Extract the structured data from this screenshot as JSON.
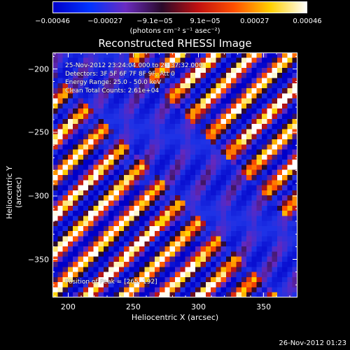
{
  "chart_data": {
    "type": "heatmap",
    "title": "Reconstructed RHESSI Image",
    "xlabel": "Heliocentric X (arcsec)",
    "ylabel": "Heliocentric Y (arcsec)",
    "xlim": [
      188,
      376
    ],
    "ylim": [
      -380,
      -187
    ],
    "xticks": [
      {
        "value": 200,
        "label": "200"
      },
      {
        "value": 250,
        "label": "250"
      },
      {
        "value": 300,
        "label": "300"
      },
      {
        "value": 350,
        "label": "350"
      }
    ],
    "yticks": [
      {
        "value": -200,
        "label": "−200"
      },
      {
        "value": -250,
        "label": "−250"
      },
      {
        "value": -300,
        "label": "−300"
      },
      {
        "value": -350,
        "label": "−350"
      }
    ],
    "colorbar": {
      "range": [
        -0.00046,
        0.00046
      ],
      "ticks": [
        {
          "value": -0.00046,
          "label": "−0.00046"
        },
        {
          "value": -0.00027,
          "label": "−0.00027"
        },
        {
          "value": -9.1e-05,
          "label": "−9.1e−05"
        },
        {
          "value": 9.1e-05,
          "label": "9.1e−05"
        },
        {
          "value": 0.00027,
          "label": "0.00027"
        },
        {
          "value": 0.00046,
          "label": "0.00046"
        }
      ],
      "unit_label": "(photons cm⁻² s⁻¹ asec⁻²)",
      "colors": [
        "#0000c8",
        "#0033ff",
        "#6a2bc0",
        "#2a0a2a",
        "#c01010",
        "#ff5000",
        "#ffd000",
        "#ffffff"
      ]
    },
    "annotations": {
      "time_range": "25-Nov-2012 23:24:04.000 to 23:37:32.000",
      "detectors": "Detectors: 3F 5F 6F 7F 8F 9F, Att 0",
      "energy_range": "Energy Range: 25.0 - 50.0 keV",
      "method": "Clean    Total Counts: 2.61e+04",
      "peak": "Position of Peak = [265,-192]"
    },
    "peak_position": [
      265,
      -192
    ],
    "grid": false
  },
  "footer": {
    "date": "26-Nov-2012 01:23"
  }
}
